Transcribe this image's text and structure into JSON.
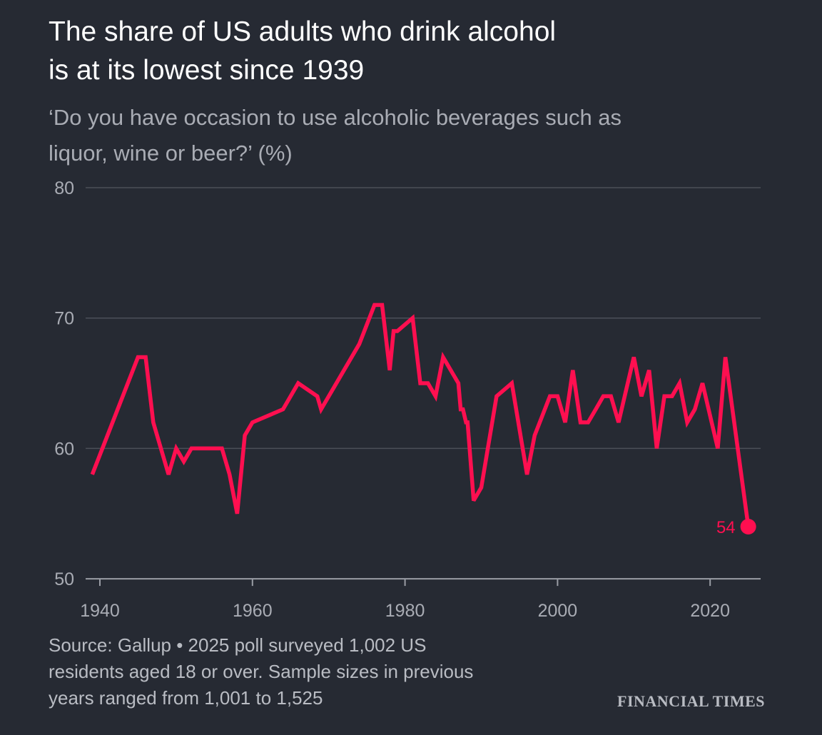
{
  "header": {
    "title_line1": "The share of US adults who drink alcohol",
    "title_line2": "is at its lowest since 1939",
    "subtitle_line1": "‘Do you have occasion to use alcoholic beverages such as",
    "subtitle_line2": "liquor, wine or beer?’ (%)"
  },
  "footer": {
    "source_line1": "Source: Gallup • 2025 poll surveyed 1,002 US",
    "source_line2": "residents aged 18 or over. Sample sizes in previous",
    "source_line3": "years ranged from 1,001 to 1,525",
    "logo": "FINANCIAL TIMES"
  },
  "chart_data": {
    "type": "line",
    "title": "The share of US adults who drink alcohol is at its lowest since 1939",
    "subtitle": "‘Do you have occasion to use alcoholic beverages such as liquor, wine or beer?’ (%)",
    "xlabel": "",
    "ylabel": "",
    "xlim": [
      1939,
      2025
    ],
    "ylim": [
      50,
      80
    ],
    "x_ticks": [
      "1940",
      "1960",
      "1980",
      "2000",
      "2020"
    ],
    "y_ticks": [
      "50",
      "60",
      "70",
      "80"
    ],
    "grid": "horizontal",
    "line_color": "#ff0f50",
    "end_label": "54",
    "series": [
      {
        "x": [
          1939,
          1945,
          1946,
          1947,
          1949,
          1950,
          1951,
          1952,
          1956,
          1957,
          1958,
          1959,
          1960,
          1964,
          1966,
          1968.5,
          1969,
          1974,
          1976,
          1977,
          1978,
          1978.5,
          1979,
          1981,
          1982,
          1983,
          1984,
          1985,
          1987,
          1987.3,
          1987.6,
          1988,
          1988.2,
          1989,
          1990,
          1992,
          1994,
          1996,
          1997,
          1999,
          2000,
          2001,
          2002,
          2003,
          2004,
          2005,
          2006,
          2007,
          2008,
          2010,
          2011,
          2012,
          2013,
          2014,
          2015,
          2016,
          2017,
          2018,
          2019,
          2021,
          2022,
          2025
        ],
        "y": [
          58,
          67,
          67,
          62,
          58,
          60,
          59,
          60,
          60,
          58,
          55,
          61,
          62,
          63,
          65,
          64,
          63,
          68,
          71,
          71,
          66,
          69,
          69,
          70,
          65,
          65,
          64,
          67,
          65,
          63,
          63,
          62,
          62,
          56,
          57,
          64,
          65,
          58,
          61,
          64,
          64,
          62,
          66,
          62,
          62,
          63,
          64,
          64,
          62,
          67,
          64,
          66,
          60,
          64,
          64,
          65,
          62,
          63,
          65,
          60,
          67,
          54
        ]
      }
    ]
  }
}
